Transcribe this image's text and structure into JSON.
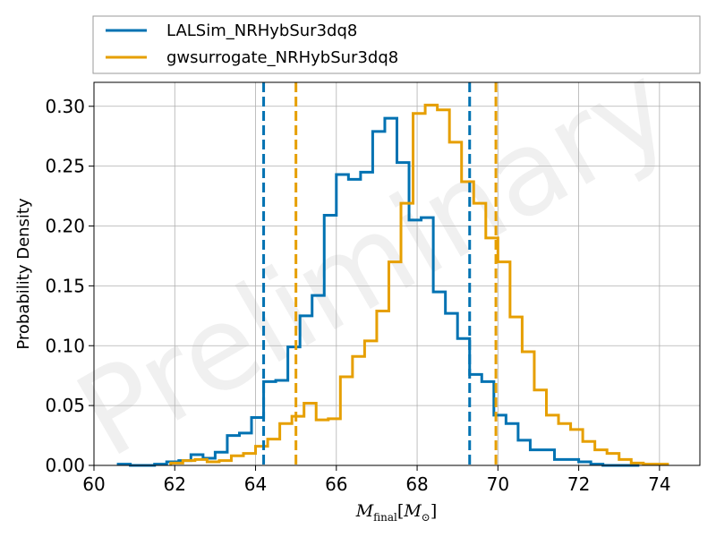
{
  "chart_data": {
    "type": "line",
    "subtype": "step-histogram",
    "xlabel_math": {
      "main": "M",
      "sub": "final",
      "bracket_open": "[",
      "inner": "M",
      "inner_sub": "⊙",
      "bracket_close": "]"
    },
    "ylabel": "Probability Density",
    "watermark": "Preliminary",
    "xlim": [
      60,
      75
    ],
    "ylim": [
      0,
      0.32
    ],
    "xticks": [
      "60",
      "62",
      "64",
      "66",
      "68",
      "70",
      "72",
      "74"
    ],
    "yticks": [
      "0.00",
      "0.05",
      "0.10",
      "0.15",
      "0.20",
      "0.25",
      "0.30"
    ],
    "grid": true,
    "legend_position": "top (above plot)",
    "series": [
      {
        "name": "LALSim_NRHybSur3dq8",
        "color": "#0072B2",
        "edges": [
          60.6,
          60.9,
          61.2,
          61.5,
          61.8,
          62.1,
          62.4,
          62.7,
          63.0,
          63.3,
          63.6,
          63.9,
          64.2,
          64.5,
          64.8,
          65.1,
          65.4,
          65.7,
          66.0,
          66.3,
          66.6,
          66.9,
          67.2,
          67.5,
          67.8,
          68.1,
          68.4,
          68.7,
          69.0,
          69.3,
          69.6,
          69.9,
          70.2,
          70.5,
          70.8,
          71.1,
          71.4,
          71.7,
          72.0,
          72.3,
          72.6,
          72.9,
          73.2,
          73.5
        ],
        "values": [
          0.001,
          0.0,
          0.0,
          0.001,
          0.003,
          0.004,
          0.009,
          0.006,
          0.011,
          0.025,
          0.027,
          0.04,
          0.07,
          0.071,
          0.099,
          0.125,
          0.142,
          0.209,
          0.243,
          0.239,
          0.245,
          0.279,
          0.29,
          0.253,
          0.205,
          0.207,
          0.145,
          0.127,
          0.106,
          0.076,
          0.07,
          0.042,
          0.035,
          0.021,
          0.013,
          0.013,
          0.005,
          0.005,
          0.003,
          0.001,
          0.0,
          0.0,
          0.0
        ]
      },
      {
        "name": "gwsurrogate_NRHybSur3dq8",
        "color": "#E69F00",
        "edges": [
          61.9,
          62.2,
          62.5,
          62.8,
          63.1,
          63.4,
          63.7,
          64.0,
          64.3,
          64.6,
          64.9,
          65.2,
          65.5,
          65.8,
          66.1,
          66.4,
          66.7,
          67.0,
          67.3,
          67.6,
          67.9,
          68.2,
          68.5,
          68.8,
          69.1,
          69.4,
          69.7,
          70.0,
          70.3,
          70.6,
          70.9,
          71.2,
          71.5,
          71.8,
          72.1,
          72.4,
          72.7,
          73.0,
          73.3,
          73.6,
          73.9,
          74.2
        ],
        "values": [
          0.002,
          0.004,
          0.005,
          0.003,
          0.004,
          0.008,
          0.01,
          0.016,
          0.022,
          0.035,
          0.041,
          0.052,
          0.038,
          0.039,
          0.074,
          0.091,
          0.104,
          0.129,
          0.17,
          0.219,
          0.294,
          0.301,
          0.297,
          0.27,
          0.237,
          0.219,
          0.19,
          0.17,
          0.124,
          0.095,
          0.063,
          0.042,
          0.035,
          0.03,
          0.02,
          0.013,
          0.01,
          0.005,
          0.002,
          0.001,
          0.001
        ]
      }
    ],
    "vlines": [
      {
        "series": "LALSim_NRHybSur3dq8",
        "x": 64.2,
        "color": "#0072B2",
        "style": "dashed"
      },
      {
        "series": "LALSim_NRHybSur3dq8",
        "x": 69.3,
        "color": "#0072B2",
        "style": "dashed"
      },
      {
        "series": "gwsurrogate_NRHybSur3dq8",
        "x": 65.0,
        "color": "#E69F00",
        "style": "dashed"
      },
      {
        "series": "gwsurrogate_NRHybSur3dq8",
        "x": 69.95,
        "color": "#E69F00",
        "style": "dashed"
      }
    ]
  }
}
